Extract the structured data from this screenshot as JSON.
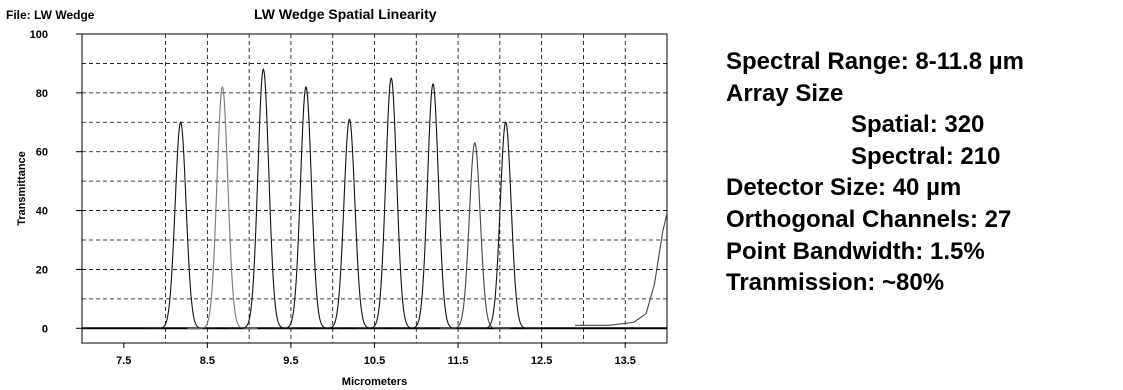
{
  "header": {
    "file_label": "File: LW Wedge"
  },
  "chart_data": {
    "type": "line",
    "title": "LW Wedge Spatial Linearity",
    "xlabel": "Micrometers",
    "ylabel": "Transmittance",
    "xlim": [
      7.0,
      14.0
    ],
    "ylim": [
      -5,
      100
    ],
    "x_ticks": [
      7.5,
      8.5,
      9.5,
      10.5,
      11.5,
      12.5,
      13.5
    ],
    "x_tick_labels": [
      "7.5",
      "8.5",
      "9.5",
      "10.5",
      "11.5",
      "12.5",
      "13.5"
    ],
    "y_ticks": [
      0,
      20,
      40,
      60,
      80,
      100
    ],
    "y_tick_labels": [
      "0",
      "20",
      "40",
      "60",
      "80",
      "100"
    ],
    "grid": true,
    "legend": "none",
    "series": [
      {
        "peak_x": 8.18,
        "peak_y": 70,
        "color": "#111111"
      },
      {
        "peak_x": 8.68,
        "peak_y": 82,
        "color": "#777777"
      },
      {
        "peak_x": 9.17,
        "peak_y": 88,
        "color": "#111111"
      },
      {
        "peak_x": 9.68,
        "peak_y": 82,
        "color": "#111111"
      },
      {
        "peak_x": 10.2,
        "peak_y": 71,
        "color": "#111111"
      },
      {
        "peak_x": 10.7,
        "peak_y": 85,
        "color": "#111111"
      },
      {
        "peak_x": 11.2,
        "peak_y": 83,
        "color": "#111111"
      },
      {
        "peak_x": 11.7,
        "peak_y": 63,
        "color": "#444444"
      },
      {
        "peak_x": 12.07,
        "peak_y": 70,
        "color": "#111111"
      },
      {
        "x": [
          12.9,
          13.3,
          13.6,
          13.75,
          13.85,
          13.95,
          14.0
        ],
        "y": [
          1,
          1,
          2,
          5,
          15,
          33,
          39
        ],
        "color": "#444444"
      }
    ]
  },
  "specs": [
    {
      "text": "Spectral Range: 8-11.8 µm",
      "indent": false
    },
    {
      "text": "Array Size",
      "indent": false
    },
    {
      "text": "Spatial: 320",
      "indent": true
    },
    {
      "text": "Spectral: 210",
      "indent": true
    },
    {
      "text": "Detector Size:  40 µm",
      "indent": false
    },
    {
      "text": "Orthogonal Channels: 27",
      "indent": false
    },
    {
      "text": "Point Bandwidth: 1.5%",
      "indent": false
    },
    {
      "text": "Tranmission: ~80%",
      "indent": false
    }
  ]
}
